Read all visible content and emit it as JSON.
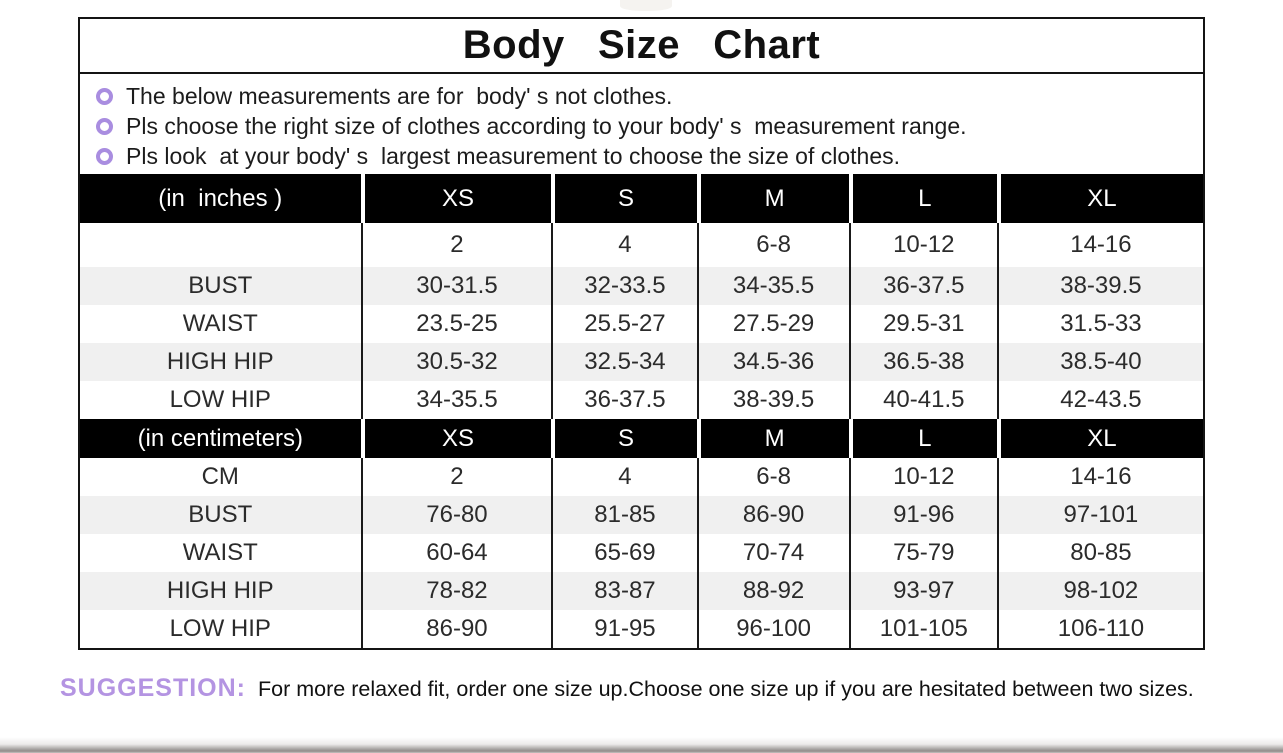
{
  "title": "Body  Size  Chart",
  "notes": [
    "The below measurements are for  body' s not clothes.",
    "Pls choose the right size of clothes according to your body' s  measurement range.",
    "Pls look  at your body' s  largest measurement to choose the size of clothes."
  ],
  "chart_data": [
    {
      "type": "table",
      "title": "Body Size Chart (in inches)",
      "columns": [
        "(in  inches )",
        "XS",
        "S",
        "M",
        "L",
        "XL"
      ],
      "rows": [
        [
          "",
          "2",
          "4",
          "6-8",
          "10-12",
          "14-16"
        ],
        [
          "BUST",
          "30-31.5",
          "32-33.5",
          "34-35.5",
          "36-37.5",
          "38-39.5"
        ],
        [
          "WAIST",
          "23.5-25",
          "25.5-27",
          "27.5-29",
          "29.5-31",
          "31.5-33"
        ],
        [
          "HIGH HIP",
          "30.5-32",
          "32.5-34",
          "34.5-36",
          "36.5-38",
          "38.5-40"
        ],
        [
          "LOW HIP",
          "34-35.5",
          "36-37.5",
          "38-39.5",
          "40-41.5",
          "42-43.5"
        ]
      ]
    },
    {
      "type": "table",
      "title": "Body Size Chart (in centimeters)",
      "columns": [
        "(in centimeters)",
        "XS",
        "S",
        "M",
        "L",
        "XL"
      ],
      "rows": [
        [
          "CM",
          "2",
          "4",
          "6-8",
          "10-12",
          "14-16"
        ],
        [
          "BUST",
          "76-80",
          "81-85",
          "86-90",
          "91-96",
          "97-101"
        ],
        [
          "WAIST",
          "60-64",
          "65-69",
          "70-74",
          "75-79",
          "80-85"
        ],
        [
          "HIGH HIP",
          "78-82",
          "83-87",
          "88-92",
          "93-97",
          "98-102"
        ],
        [
          "LOW HIP",
          "86-90",
          "91-95",
          "96-100",
          "101-105",
          "106-110"
        ]
      ]
    }
  ],
  "suggestion": {
    "label": "SUGGESTION:",
    "text": "For more relaxed fit, order one size up.Choose one size up if you are hesitated between two sizes."
  },
  "colors": {
    "bullet_purple": "#a98de0",
    "suggestion_purple": "#b494e2",
    "header_bg": "#000000",
    "header_text": "#ffffff",
    "row_stripe": "#f0f0f0",
    "border_black": "#141414"
  }
}
